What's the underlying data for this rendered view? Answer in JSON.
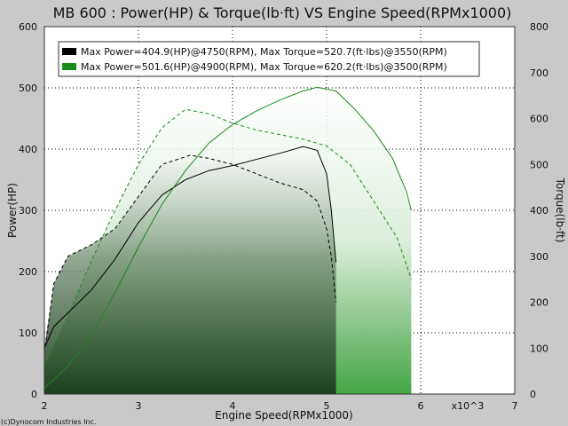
{
  "chart_data": {
    "type": "line",
    "title": "MB 600 : Power(HP) & Torque(lb·ft) VS Engine Speed(RPMx1000)",
    "xlabel": "Engine Speed(RPMx1000)",
    "x_multiplier": "x10^3",
    "ylabel_left": "Power(HP)",
    "ylabel_right": "Torque(lb·ft)",
    "xlim": [
      2,
      7
    ],
    "ylim_left": [
      0,
      600
    ],
    "ylim_right": [
      0,
      800
    ],
    "x_ticks": [
      "2",
      "3",
      "4",
      "5",
      "6",
      "7"
    ],
    "y_ticks_left": [
      "0",
      "100",
      "200",
      "300",
      "400",
      "500",
      "600"
    ],
    "y_ticks_right": [
      "0",
      "100",
      "200",
      "300",
      "400",
      "500",
      "600",
      "700",
      "800"
    ],
    "grid": true,
    "legend_position": "top-left",
    "legend": [
      "Max Power=404.9(HP)@4750(RPM), Max Torque=520.7(ft·lbs)@3550(RPM)",
      "Max Power=501.6(HP)@4900(RPM), Max Torque=620.2(ft·lbs)@3500(RPM)"
    ],
    "series": [
      {
        "color": "#000000",
        "power_hp": {
          "x": [
            2.0,
            2.1,
            2.3,
            2.5,
            2.75,
            3.0,
            3.25,
            3.5,
            3.75,
            4.0,
            4.25,
            4.5,
            4.75,
            4.9,
            5.0,
            5.05,
            5.1
          ],
          "y": [
            75,
            110,
            140,
            170,
            220,
            280,
            325,
            350,
            365,
            373,
            383,
            393,
            404,
            398,
            360,
            300,
            215
          ]
        },
        "torque_lbft": {
          "x": [
            2.0,
            2.1,
            2.25,
            2.5,
            2.75,
            3.0,
            3.25,
            3.55,
            3.75,
            4.0,
            4.25,
            4.5,
            4.75,
            4.9,
            5.0,
            5.05,
            5.1
          ],
          "y": [
            90,
            240,
            300,
            325,
            360,
            430,
            500,
            520,
            513,
            500,
            480,
            460,
            445,
            420,
            360,
            300,
            200
          ]
        }
      },
      {
        "color": "#1a8a1a",
        "power_hp": {
          "x": [
            2.0,
            2.25,
            2.5,
            2.75,
            3.0,
            3.25,
            3.5,
            3.75,
            4.0,
            4.25,
            4.5,
            4.75,
            4.9,
            5.1,
            5.3,
            5.5,
            5.7,
            5.85,
            5.9
          ],
          "y": [
            10,
            45,
            95,
            165,
            240,
            310,
            365,
            410,
            440,
            462,
            480,
            495,
            501,
            495,
            465,
            430,
            385,
            330,
            300
          ]
        },
        "torque_lbft": {
          "x": [
            2.0,
            2.25,
            2.5,
            2.75,
            3.0,
            3.25,
            3.5,
            3.75,
            4.0,
            4.25,
            4.5,
            4.75,
            5.0,
            5.25,
            5.5,
            5.75,
            5.9
          ],
          "y": [
            60,
            170,
            290,
            400,
            500,
            580,
            620,
            610,
            590,
            575,
            565,
            555,
            540,
            500,
            420,
            340,
            250
          ]
        }
      }
    ]
  },
  "footer": {
    "copyright": "(c)Dynocom Industries Inc."
  }
}
